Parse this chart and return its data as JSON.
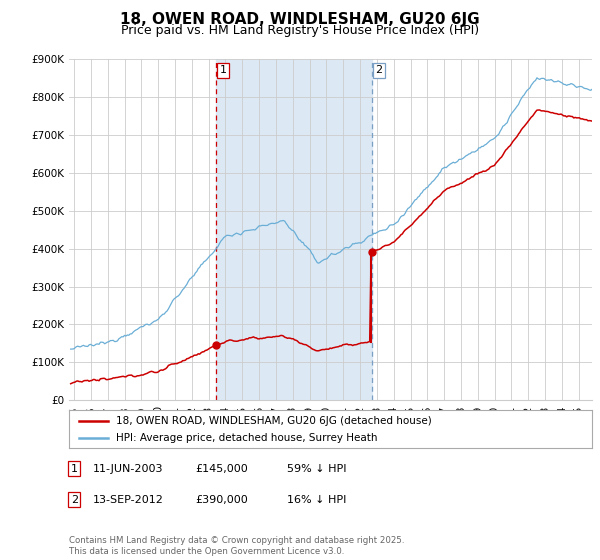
{
  "title": "18, OWEN ROAD, WINDLESHAM, GU20 6JG",
  "subtitle": "Price paid vs. HM Land Registry's House Price Index (HPI)",
  "hpi_color": "#6aaed6",
  "price_color": "#cc0000",
  "marker_color": "#cc0000",
  "vline1_color": "#cc0000",
  "vline2_color": "#7a9fc4",
  "shade_color": "#dce9f5",
  "background_color": "#ffffff",
  "grid_color": "#cccccc",
  "ylim": [
    0,
    900000
  ],
  "yticks": [
    0,
    100000,
    200000,
    300000,
    400000,
    500000,
    600000,
    700000,
    800000,
    900000
  ],
  "ytick_labels": [
    "£0",
    "£100K",
    "£200K",
    "£300K",
    "£400K",
    "£500K",
    "£600K",
    "£700K",
    "£800K",
    "£900K"
  ],
  "xlim_start": 1994.7,
  "xlim_end": 2025.8,
  "transaction1_year": 2003.44,
  "transaction1_price": 145000,
  "transaction2_year": 2012.7,
  "transaction2_price": 390000,
  "legend_line1": "18, OWEN ROAD, WINDLESHAM, GU20 6JG (detached house)",
  "legend_line2": "HPI: Average price, detached house, Surrey Heath",
  "footer": "Contains HM Land Registry data © Crown copyright and database right 2025.\nThis data is licensed under the Open Government Licence v3.0.",
  "title_fontsize": 11,
  "subtitle_fontsize": 9,
  "axis_fontsize": 7.5
}
